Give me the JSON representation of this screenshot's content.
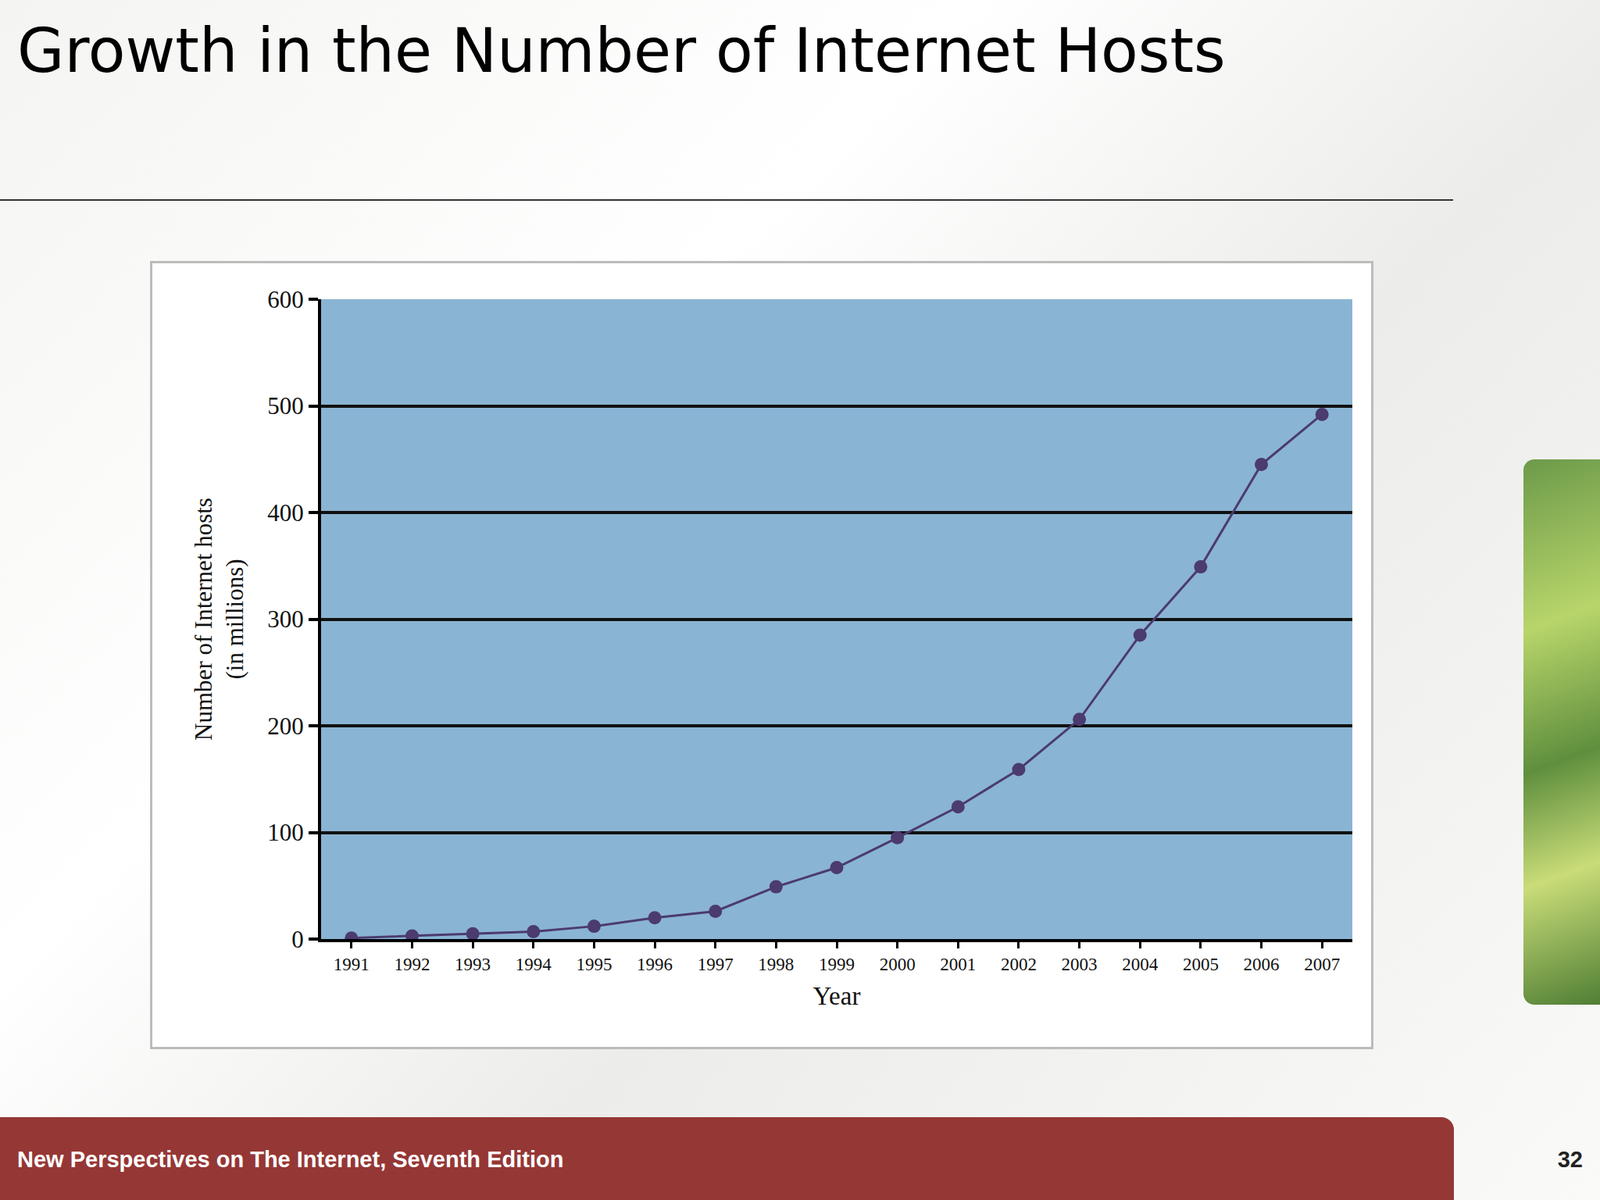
{
  "slide": {
    "title": "Growth in the Number of Internet Hosts",
    "footer": "New Perspectives on The Internet, Seventh Edition",
    "page": 32
  },
  "chart_data": {
    "type": "line",
    "x_label": "Year",
    "y_label": "Number of Internet hosts (in millions)",
    "x": [
      1991,
      1992,
      1993,
      1994,
      1995,
      1996,
      1997,
      1998,
      1999,
      2000,
      2001,
      2002,
      2003,
      2004,
      2005,
      2006,
      2007
    ],
    "values": [
      1,
      3,
      5,
      7,
      12,
      20,
      26,
      49,
      67,
      95,
      124,
      159,
      206,
      285,
      349,
      445,
      492
    ],
    "color": "#4b3b6e",
    "marker": "circle",
    "xlim": [
      1990.5,
      2007.5
    ],
    "xticks": [
      1991,
      1992,
      1993,
      1994,
      1995,
      1996,
      1997,
      1998,
      1999,
      2000,
      2001,
      2002,
      2003,
      2004,
      2005,
      2006,
      2007
    ],
    "ylim": [
      0,
      600
    ],
    "yticks": [
      0,
      100,
      200,
      300,
      400,
      500,
      600
    ],
    "grid": true
  }
}
